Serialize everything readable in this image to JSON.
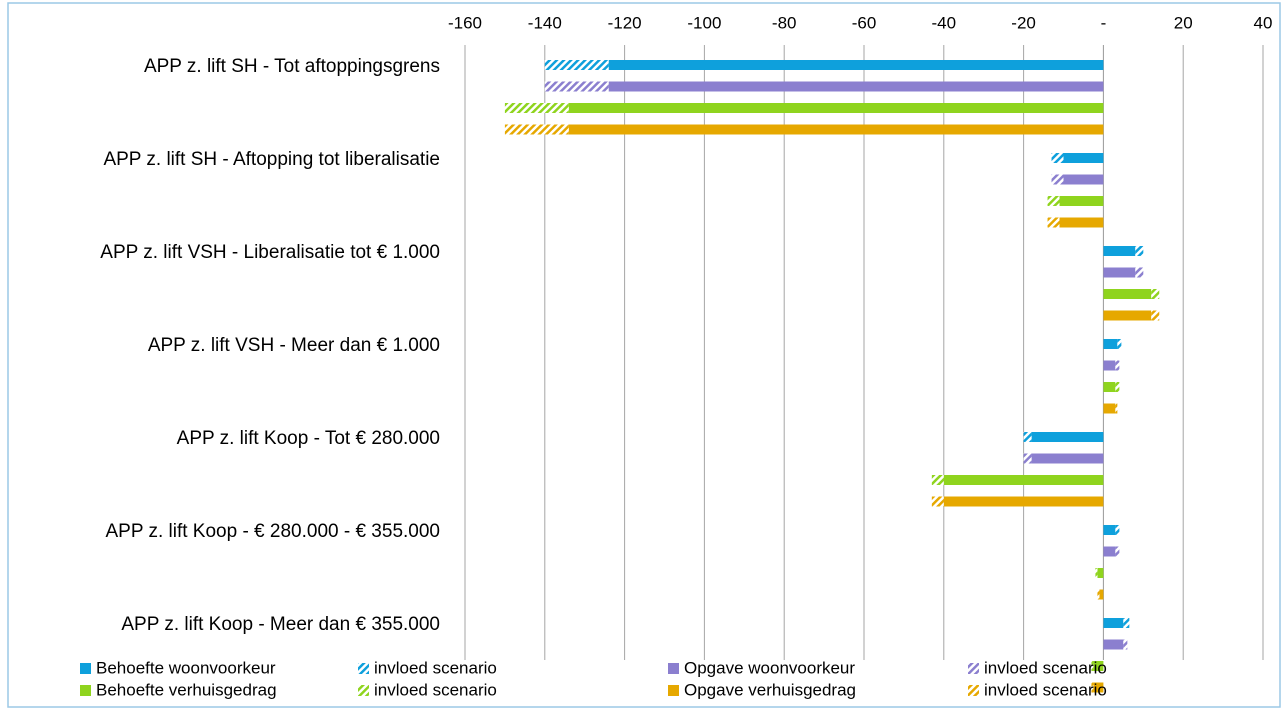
{
  "chart_data": {
    "type": "bar",
    "orientation": "horizontal",
    "categories": [
      "APP z. lift SH - Tot aftoppingsgrens",
      "APP z. lift SH - Aftopping tot liberalisatie",
      "APP z. lift VSH - Liberalisatie tot € 1.000",
      "APP z. lift VSH - Meer dan € 1.000",
      "APP z. lift Koop - Tot € 280.000",
      "APP z. lift Koop -  € 280.000 - € 355.000",
      "APP z. lift Koop - Meer dan € 355.000"
    ],
    "series": [
      {
        "name": "Behoefte woonvoorkeur",
        "color": "#0ea0dc",
        "values": [
          -124,
          -10,
          8,
          3.5,
          -18,
          3,
          5
        ]
      },
      {
        "name": "invloed scenario",
        "color": "#0ea0dc",
        "pattern": "hatch",
        "values": [
          -16,
          -3,
          2,
          1,
          -2,
          1,
          1.5
        ]
      },
      {
        "name": "Opgave woonvoorkeur",
        "color": "#8b7fcf",
        "values": [
          -124,
          -10,
          8,
          3,
          -18,
          3,
          5
        ]
      },
      {
        "name": "invloed scenario",
        "color": "#8b7fcf",
        "pattern": "hatch",
        "values": [
          -16,
          -3,
          2,
          1,
          -2,
          1,
          1
        ]
      },
      {
        "name": "Behoefte verhuisgedrag",
        "color": "#8fd41e",
        "values": [
          -134,
          -11,
          12,
          3,
          -40,
          -1.5,
          -2.5
        ]
      },
      {
        "name": "invloed scenario",
        "color": "#8fd41e",
        "pattern": "hatch",
        "values": [
          -16,
          -3,
          2,
          1,
          -3,
          -0.5,
          -0.5
        ]
      },
      {
        "name": "Opgave verhuisgedrag",
        "color": "#e6a800",
        "values": [
          -134,
          -11,
          12,
          3,
          -40,
          -1,
          -2.5
        ]
      },
      {
        "name": "invloed scenario",
        "color": "#e6a800",
        "pattern": "hatch",
        "values": [
          -16,
          -3,
          2,
          0.5,
          -3,
          -0.5,
          -0.5
        ]
      }
    ],
    "xlim": [
      -160,
      40
    ],
    "xticks": [
      -160,
      -140,
      -120,
      -100,
      -80,
      -60,
      -40,
      -20,
      {
        "value": 0,
        "label": "-"
      },
      20,
      40
    ],
    "grid": true,
    "legend": "bottom"
  }
}
